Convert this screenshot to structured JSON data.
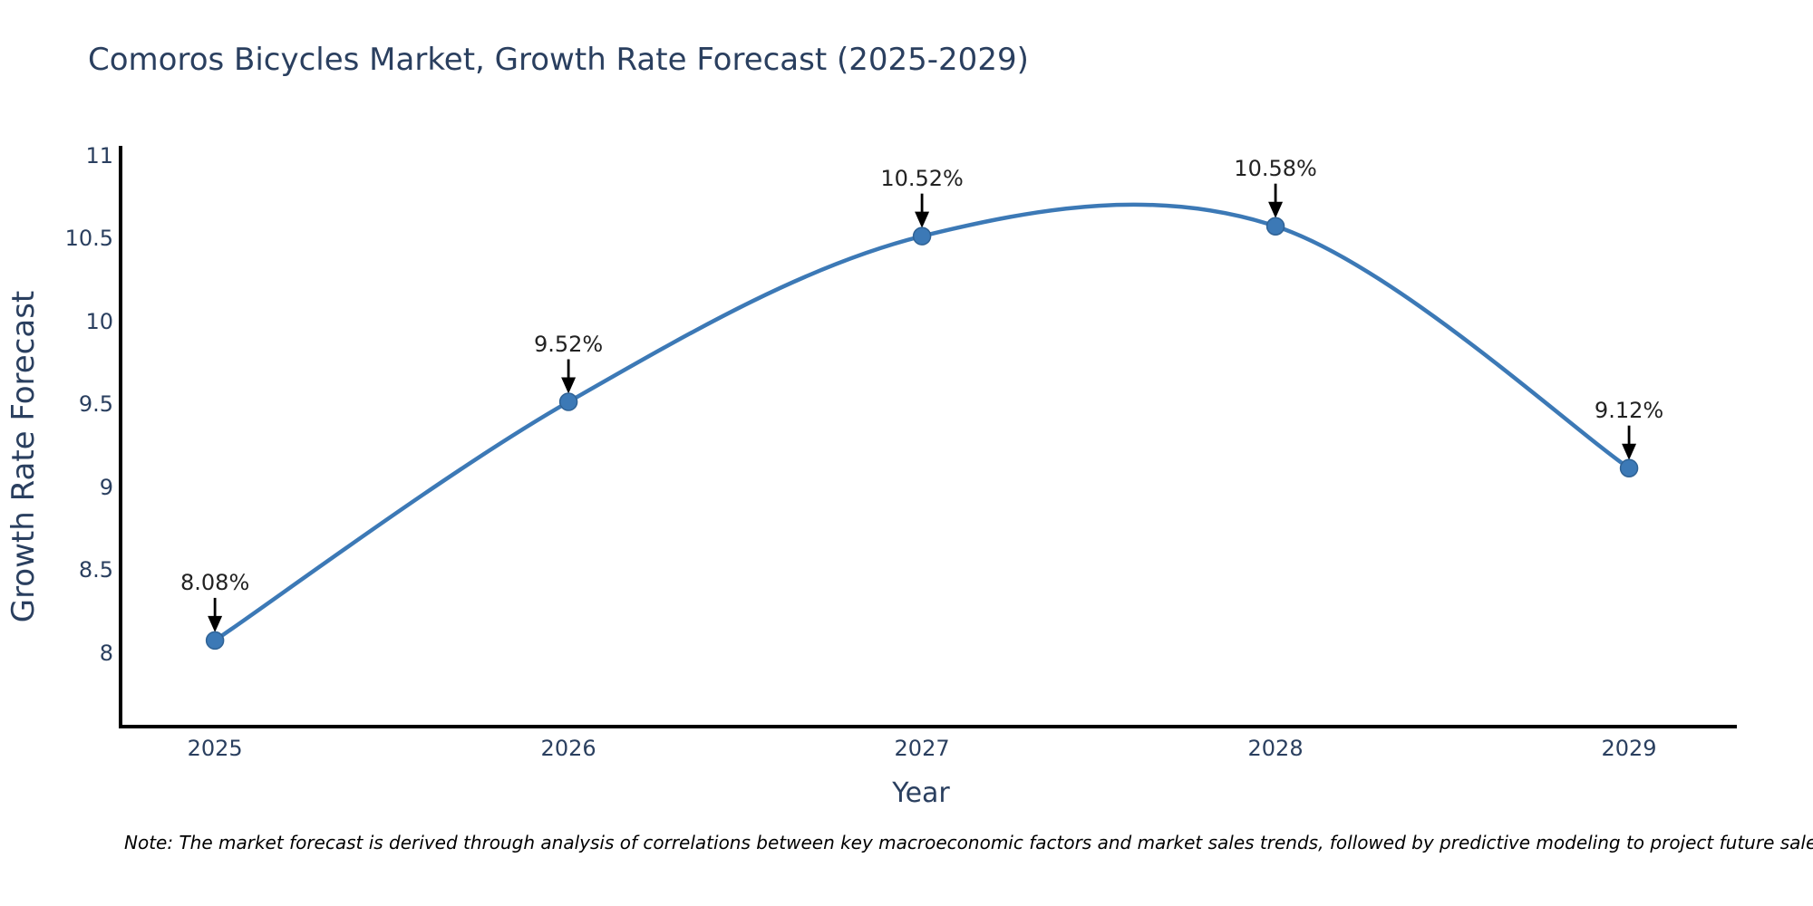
{
  "title": "Comoros Bicycles Market, Growth Rate Forecast (2025-2029)",
  "note": "Note: The market forecast is derived through analysis of correlations between key macroeconomic factors and market sales trends, followed by predictive modeling to project future sales.",
  "chart_data": {
    "type": "line",
    "title": "Comoros Bicycles Market, Growth Rate Forecast (2025-2029)",
    "xlabel": "Year",
    "ylabel": "Growth Rate Forecast",
    "x": [
      2025,
      2026,
      2027,
      2028,
      2029
    ],
    "values": [
      8.08,
      9.52,
      10.52,
      10.58,
      9.12
    ],
    "point_labels": [
      "8.08%",
      "9.52%",
      "10.52%",
      "10.58%",
      "9.12%"
    ],
    "xticks": [
      2025,
      2026,
      2027,
      2028,
      2029
    ],
    "xtick_labels": [
      "2025",
      "2026",
      "2027",
      "2028",
      "2029"
    ],
    "yticks": [
      11,
      10.5,
      10,
      9.5,
      9,
      8.5,
      8
    ],
    "ytick_labels": [
      "11",
      "10.5",
      "10",
      "9.5",
      "9",
      "8.5",
      "8"
    ],
    "xlim": [
      2024.733,
      2029.305
    ],
    "ylim": [
      7.56,
      11.065
    ],
    "grid": false,
    "legend": false,
    "smoothing": "spline",
    "line_color": "#3c79b6",
    "marker_color": "#3c79b6",
    "marker_edge_color": "#2f6295",
    "axis_color": "#000000",
    "text_color": "#2a3f5f",
    "annotation_color": "#222222",
    "annotation_arrow_color": "#000000",
    "background_color": "#ffffff"
  }
}
